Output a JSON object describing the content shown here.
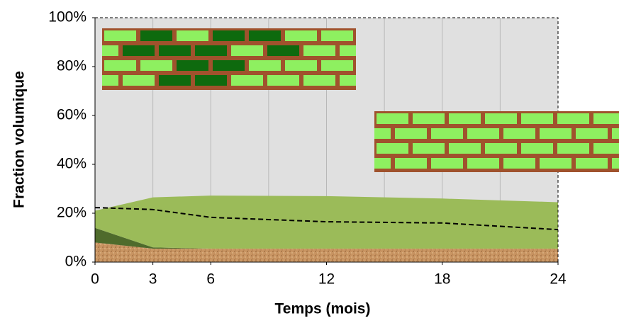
{
  "chart_data": {
    "type": "area",
    "x_label": "Temps (mois)",
    "y_label": "Fraction volumique",
    "x": [
      0,
      3,
      6,
      12,
      18,
      24
    ],
    "stacked": true,
    "series": [
      {
        "color": "#c99563",
        "values": [
          8,
          5.5,
          5.5,
          5.5,
          5.5,
          5.5
        ]
      },
      {
        "color": "#4f6b2c",
        "values": [
          6,
          0.5,
          0,
          0,
          0,
          0
        ]
      },
      {
        "color": "#9bbb59",
        "values": [
          7,
          20.5,
          21.7,
          21.5,
          20.5,
          19
        ]
      },
      {
        "type": "line",
        "color": "#000000",
        "dashed": true,
        "values": [
          22.3,
          21.5,
          18.3,
          16.5,
          16,
          13.3
        ]
      }
    ],
    "xlim": [
      0,
      24
    ],
    "xticks": [
      0,
      3,
      6,
      12,
      18,
      24
    ],
    "xgrid": [
      3,
      6,
      9,
      12,
      15,
      18,
      21
    ],
    "ylim": [
      0,
      100
    ],
    "yticks": [
      {
        "value": 0,
        "label": "0%"
      },
      {
        "value": 20,
        "label": "20%"
      },
      {
        "value": 40,
        "label": "40%"
      },
      {
        "value": 60,
        "label": "60%"
      },
      {
        "value": 80,
        "label": "80%"
      },
      {
        "value": 100,
        "label": "100%"
      }
    ],
    "background": "#e0e0e0"
  }
}
